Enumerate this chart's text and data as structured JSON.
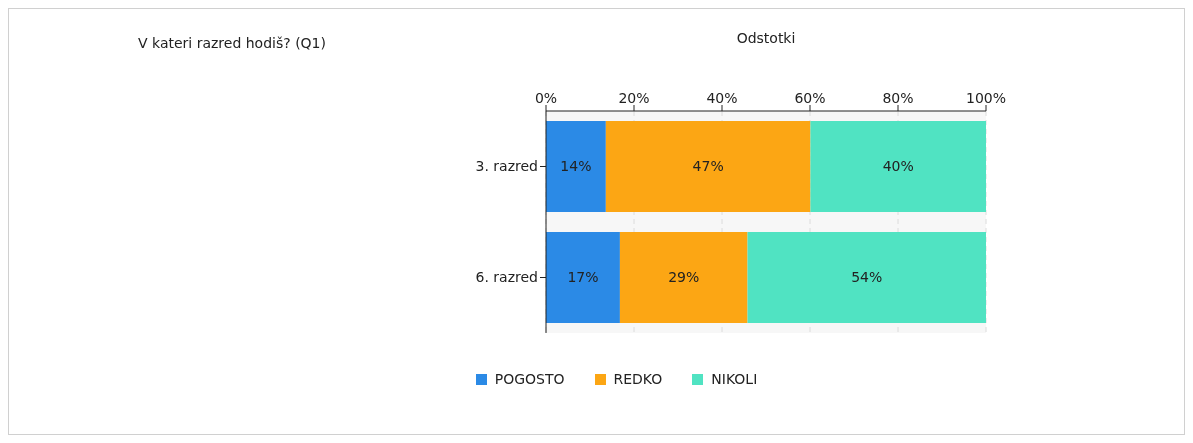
{
  "chart_data": {
    "type": "bar",
    "orientation": "horizontal",
    "stacked": true,
    "title": "V kateri razred hodiš? (Q1)",
    "xlabel": "Odstotki",
    "categories": [
      "3. razred",
      "6. razred"
    ],
    "series": [
      {
        "name": "POGOSTO",
        "color": "#2b8ae6",
        "values": [
          13.6,
          16.8
        ],
        "value_labels": [
          "14%",
          "17%"
        ]
      },
      {
        "name": "REDKO",
        "color": "#fca614",
        "values": [
          46.5,
          29.0
        ],
        "value_labels": [
          "47%",
          "29%"
        ]
      },
      {
        "name": "NIKOLI",
        "color": "#50e3c2",
        "values": [
          39.9,
          54.2
        ],
        "value_labels": [
          "40%",
          "54%"
        ]
      }
    ],
    "xlim": [
      0,
      100
    ],
    "xticks": [
      {
        "value": 0,
        "label": "0%"
      },
      {
        "value": 20,
        "label": "20%"
      },
      {
        "value": 40,
        "label": "40%"
      },
      {
        "value": 60,
        "label": "60%"
      },
      {
        "value": 80,
        "label": "80%"
      },
      {
        "value": 100,
        "label": "100%"
      }
    ],
    "grid": "x",
    "legend": "bottom"
  }
}
